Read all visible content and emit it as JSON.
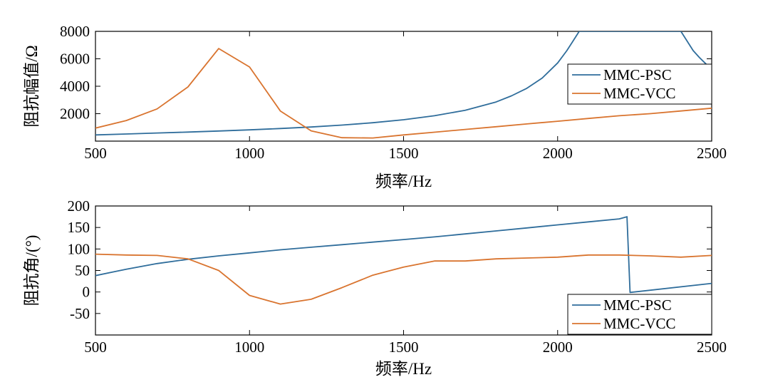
{
  "chart_data": [
    {
      "type": "line",
      "title": "",
      "xlabel": "频率/Hz",
      "ylabel": "阻抗幅值/Ω",
      "xlim": [
        500,
        2500
      ],
      "ylim": [
        0,
        8000
      ],
      "xticks": [
        500,
        1000,
        1500,
        2000,
        2500
      ],
      "yticks": [
        2000,
        4000,
        6000,
        8000
      ],
      "legend_position": "right",
      "series": [
        {
          "name": "MMC-PSC",
          "color": "#2f6d9b",
          "x": [
            500,
            600,
            700,
            800,
            900,
            1000,
            1100,
            1200,
            1300,
            1400,
            1500,
            1600,
            1700,
            1800,
            1850,
            1900,
            1950,
            2000,
            2030,
            2050,
            2070,
            2400,
            2420,
            2440,
            2460,
            2480,
            2500
          ],
          "y": [
            450,
            520,
            590,
            660,
            740,
            820,
            920,
            1030,
            1170,
            1340,
            1560,
            1850,
            2250,
            2850,
            3300,
            3850,
            4600,
            5700,
            6600,
            7300,
            8000,
            8000,
            7300,
            6600,
            6100,
            5650,
            5300
          ]
        },
        {
          "name": "MMC-VCC",
          "color": "#d9742f",
          "x": [
            500,
            600,
            700,
            800,
            900,
            1000,
            1100,
            1200,
            1300,
            1400,
            1500,
            1600,
            1700,
            1800,
            1900,
            2000,
            2100,
            2200,
            2300,
            2400,
            2500
          ],
          "y": [
            950,
            1500,
            2350,
            3950,
            6750,
            5400,
            2200,
            750,
            250,
            230,
            450,
            650,
            850,
            1050,
            1250,
            1450,
            1650,
            1850,
            2000,
            2200,
            2400
          ]
        }
      ]
    },
    {
      "type": "line",
      "title": "",
      "xlabel": "频率/Hz",
      "ylabel": "阻抗角/(°)",
      "xlim": [
        500,
        2500
      ],
      "ylim": [
        -100,
        200
      ],
      "xticks": [
        500,
        1000,
        1500,
        2000,
        2500
      ],
      "yticks": [
        -50,
        0,
        50,
        100,
        150,
        200
      ],
      "legend_position": "bottom-right",
      "series": [
        {
          "name": "MMC-PSC",
          "color": "#2f6d9b",
          "x": [
            500,
            600,
            700,
            800,
            900,
            1000,
            1100,
            1200,
            1300,
            1400,
            1500,
            1600,
            1700,
            1800,
            1900,
            2000,
            2100,
            2200,
            2225,
            2235,
            2500
          ],
          "y": [
            38,
            53,
            66,
            76,
            84,
            91,
            98,
            104,
            110,
            116,
            122,
            128,
            135,
            142,
            149,
            156,
            163,
            170,
            175,
            -1,
            20
          ]
        },
        {
          "name": "MMC-VCC",
          "color": "#d9742f",
          "x": [
            500,
            600,
            700,
            800,
            900,
            1000,
            1100,
            1200,
            1300,
            1400,
            1500,
            1600,
            1700,
            1800,
            1900,
            2000,
            2100,
            2200,
            2300,
            2400,
            2500
          ],
          "y": [
            88,
            86,
            85,
            77,
            50,
            -8,
            -28,
            -17,
            10,
            39,
            58,
            72,
            72,
            77,
            79,
            81,
            86,
            86,
            84,
            81,
            85
          ]
        }
      ]
    }
  ]
}
